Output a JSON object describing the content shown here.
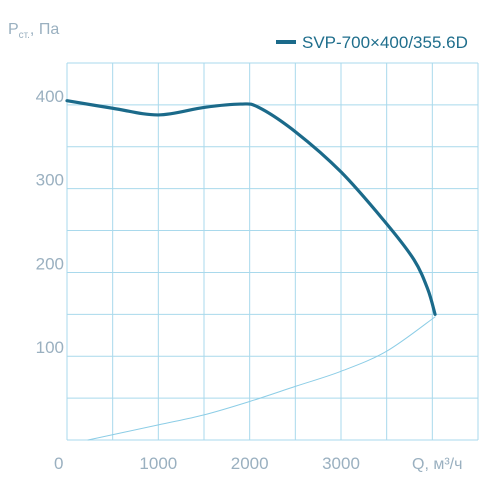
{
  "chart_data": {
    "type": "line",
    "ylabel_main": "P",
    "ylabel_sub": "ст.",
    "ylabel_unit": ", Па",
    "xlabel": "Q, м³/ч",
    "xlim": [
      0,
      4500
    ],
    "ylim": [
      0,
      450
    ],
    "x_ticks": [
      0,
      1000,
      2000,
      3000
    ],
    "x_tick_labels": [
      "0",
      "1000",
      "2000",
      "3000"
    ],
    "y_ticks": [
      100,
      200,
      300,
      400
    ],
    "y_tick_labels": [
      "100",
      "200",
      "300",
      "400"
    ],
    "grid": true,
    "legend_position": "top-right",
    "series": [
      {
        "name": "SVP-700×400/355.6D",
        "color": "#1b6a8a",
        "x": [
          0,
          500,
          1000,
          1500,
          1900,
          2100,
          2500,
          3000,
          3500,
          3800,
          3950,
          4030
        ],
        "y": [
          405,
          396,
          388,
          397,
          401,
          397,
          368,
          320,
          258,
          215,
          180,
          150
        ]
      },
      {
        "name": "",
        "color": "#8ccde6",
        "x": [
          230,
          1000,
          1500,
          2000,
          2500,
          3000,
          3500,
          4030
        ],
        "y": [
          0,
          18,
          30,
          46,
          64,
          82,
          106,
          147
        ]
      }
    ]
  }
}
